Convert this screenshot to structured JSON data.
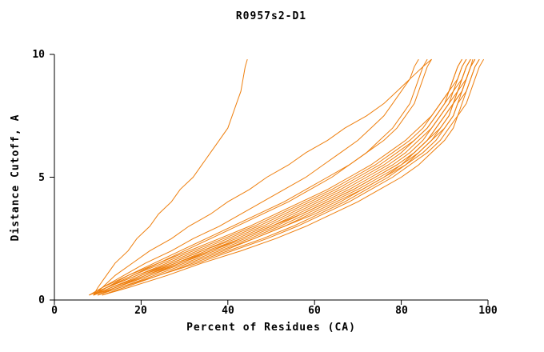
{
  "chart_data": {
    "type": "line",
    "title": "R0957s2-D1",
    "xlabel": "Percent of Residues (CA)",
    "ylabel": "Distance Cutoff, A",
    "xlim": [
      0,
      100
    ],
    "ylim": [
      0,
      10
    ],
    "xticks": [
      0,
      20,
      40,
      60,
      80,
      100
    ],
    "yticks": [
      0,
      5,
      10
    ],
    "grid": false,
    "legend": "none",
    "axis_color": "#000000",
    "line_color": "#ee7f0e",
    "y_levels": [
      0.2,
      0.5,
      1,
      1.5,
      2,
      2.5,
      3,
      3.5,
      4,
      4.5,
      5,
      5.5,
      6,
      6.5,
      7,
      7.5,
      8,
      8.5,
      9,
      9.5,
      9.8
    ],
    "series": [
      {
        "x": [
          9,
          13,
          20,
          27,
          34,
          41,
          48,
          54,
          60,
          66,
          71,
          76,
          80,
          83,
          86,
          88,
          90,
          92,
          93,
          94,
          95
        ]
      },
      {
        "x": [
          8,
          12,
          18,
          25,
          32,
          39,
          46,
          52,
          58,
          64,
          69,
          74,
          78,
          82,
          85,
          87,
          89,
          91,
          92,
          93,
          94
        ]
      },
      {
        "x": [
          10,
          14,
          22,
          29,
          36,
          43,
          50,
          56,
          62,
          68,
          73,
          78,
          82,
          85,
          87,
          89,
          91,
          93,
          94,
          95,
          96
        ]
      },
      {
        "x": [
          9,
          13,
          21,
          28,
          36,
          44,
          51,
          57,
          63,
          69,
          74,
          79,
          83,
          86,
          88,
          90,
          92,
          93,
          94,
          95,
          96
        ]
      },
      {
        "x": [
          10,
          15,
          23,
          31,
          39,
          46,
          53,
          59,
          65,
          71,
          76,
          80,
          84,
          87,
          89,
          91,
          92,
          94,
          95,
          96,
          97
        ]
      },
      {
        "x": [
          8,
          12,
          19,
          26,
          33,
          40,
          47,
          53,
          59,
          65,
          70,
          75,
          79,
          83,
          86,
          88,
          90,
          91,
          93,
          94,
          95
        ]
      },
      {
        "x": [
          11,
          16,
          24,
          32,
          40,
          48,
          55,
          61,
          67,
          72,
          77,
          81,
          85,
          88,
          90,
          92,
          93,
          94,
          95,
          96,
          97
        ]
      },
      {
        "x": [
          9,
          14,
          21,
          29,
          37,
          45,
          52,
          58,
          64,
          70,
          75,
          80,
          83,
          86,
          89,
          91,
          92,
          94,
          95,
          96,
          96.5
        ]
      },
      {
        "x": [
          10,
          14,
          22,
          30,
          38,
          46,
          53,
          60,
          66,
          71,
          76,
          81,
          84,
          87,
          90,
          92,
          93,
          95,
          96,
          97,
          98
        ]
      },
      {
        "x": [
          9,
          13,
          20,
          28,
          35,
          43,
          50,
          57,
          63,
          69,
          74,
          79,
          83,
          86,
          88,
          90,
          92,
          93,
          95,
          96,
          97
        ]
      },
      {
        "x": [
          8,
          11,
          17,
          24,
          31,
          38,
          45,
          51,
          57,
          63,
          68,
          73,
          77,
          81,
          84,
          87,
          89,
          91,
          92,
          93,
          94
        ]
      },
      {
        "x": [
          10,
          15,
          24,
          33,
          41,
          49,
          56,
          62,
          68,
          73,
          78,
          82,
          86,
          89,
          91,
          93,
          94,
          95,
          96,
          97,
          98
        ]
      },
      {
        "x": [
          9,
          12,
          19,
          27,
          34,
          42,
          49,
          55,
          61,
          67,
          72,
          77,
          81,
          84,
          87,
          89,
          91,
          92,
          94,
          95,
          96
        ]
      },
      {
        "x": [
          11,
          17,
          26,
          34,
          43,
          51,
          58,
          64,
          70,
          75,
          80,
          84,
          87,
          90,
          92,
          93,
          95,
          96,
          97,
          98,
          99
        ]
      },
      {
        "x": [
          9,
          12,
          18,
          24,
          30,
          36,
          42,
          48,
          54,
          59,
          64,
          68,
          72,
          75,
          78,
          80,
          82,
          83,
          84,
          85,
          86
        ]
      },
      {
        "x": [
          9,
          12,
          17,
          23,
          29,
          35,
          41,
          47,
          53,
          58,
          63,
          68,
          72,
          76,
          79,
          81,
          83,
          84,
          85,
          86,
          87
        ]
      },
      {
        "x": [
          9,
          11,
          16,
          21,
          27,
          32,
          38,
          43,
          48,
          53,
          58,
          62,
          66,
          70,
          73,
          76,
          78,
          80,
          82,
          83,
          84
        ]
      },
      {
        "x": [
          9,
          11,
          14,
          18,
          22,
          27,
          31,
          36,
          40,
          45,
          49,
          54,
          58,
          63,
          67,
          72,
          76,
          79,
          82,
          85,
          87
        ]
      },
      {
        "x": [
          9,
          10,
          12,
          14,
          17,
          19,
          22,
          24,
          27,
          29,
          32,
          34,
          36,
          38,
          40,
          41,
          42,
          43,
          43.5,
          44,
          44.5
        ]
      }
    ]
  }
}
